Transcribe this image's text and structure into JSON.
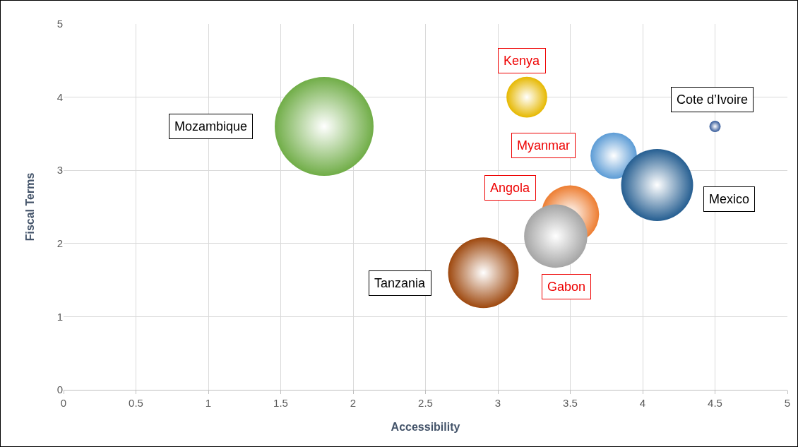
{
  "chart_data": {
    "type": "bubble",
    "xlabel": "Accessibility",
    "ylabel": "Fiscal Terms",
    "xlim": [
      0,
      5
    ],
    "xticks": [
      0,
      0.5,
      1,
      1.5,
      2,
      2.5,
      3,
      3.5,
      4,
      4.5,
      5
    ],
    "ylim": [
      0,
      5
    ],
    "yticks": [
      0,
      1,
      2,
      3,
      4,
      5
    ],
    "grid": true,
    "legend": false,
    "series": [
      {
        "name": "Mozambique",
        "color": "#70ad47",
        "x": [
          1.8
        ],
        "values": [
          3.6
        ],
        "sizes": [
          1
        ]
      },
      {
        "name": "Kenya",
        "color": "#e6b800",
        "x": [
          3.2
        ],
        "values": [
          4.0
        ],
        "sizes": [
          0.17
        ]
      },
      {
        "name": "Cote d’Ivoire",
        "color": "#2f5597",
        "x": [
          4.5
        ],
        "values": [
          3.6
        ],
        "sizes": [
          0.013
        ]
      },
      {
        "name": "Myanmar",
        "color": "#5b9bd5",
        "x": [
          3.8
        ],
        "values": [
          3.2
        ],
        "sizes": [
          0.22
        ]
      },
      {
        "name": "Mexico",
        "color": "#255e91",
        "x": [
          4.1
        ],
        "values": [
          2.8
        ],
        "sizes": [
          0.53
        ]
      },
      {
        "name": "Angola",
        "color": "#ed7d31",
        "x": [
          3.5
        ],
        "values": [
          2.4
        ],
        "sizes": [
          0.34
        ]
      },
      {
        "name": "Gabon",
        "color": "#a5a5a5",
        "x": [
          3.4
        ],
        "values": [
          2.1
        ],
        "sizes": [
          0.41
        ]
      },
      {
        "name": "Tanzania",
        "color": "#9e480e",
        "x": [
          2.9
        ],
        "values": [
          1.6
        ],
        "sizes": [
          0.51
        ]
      }
    ]
  }
}
